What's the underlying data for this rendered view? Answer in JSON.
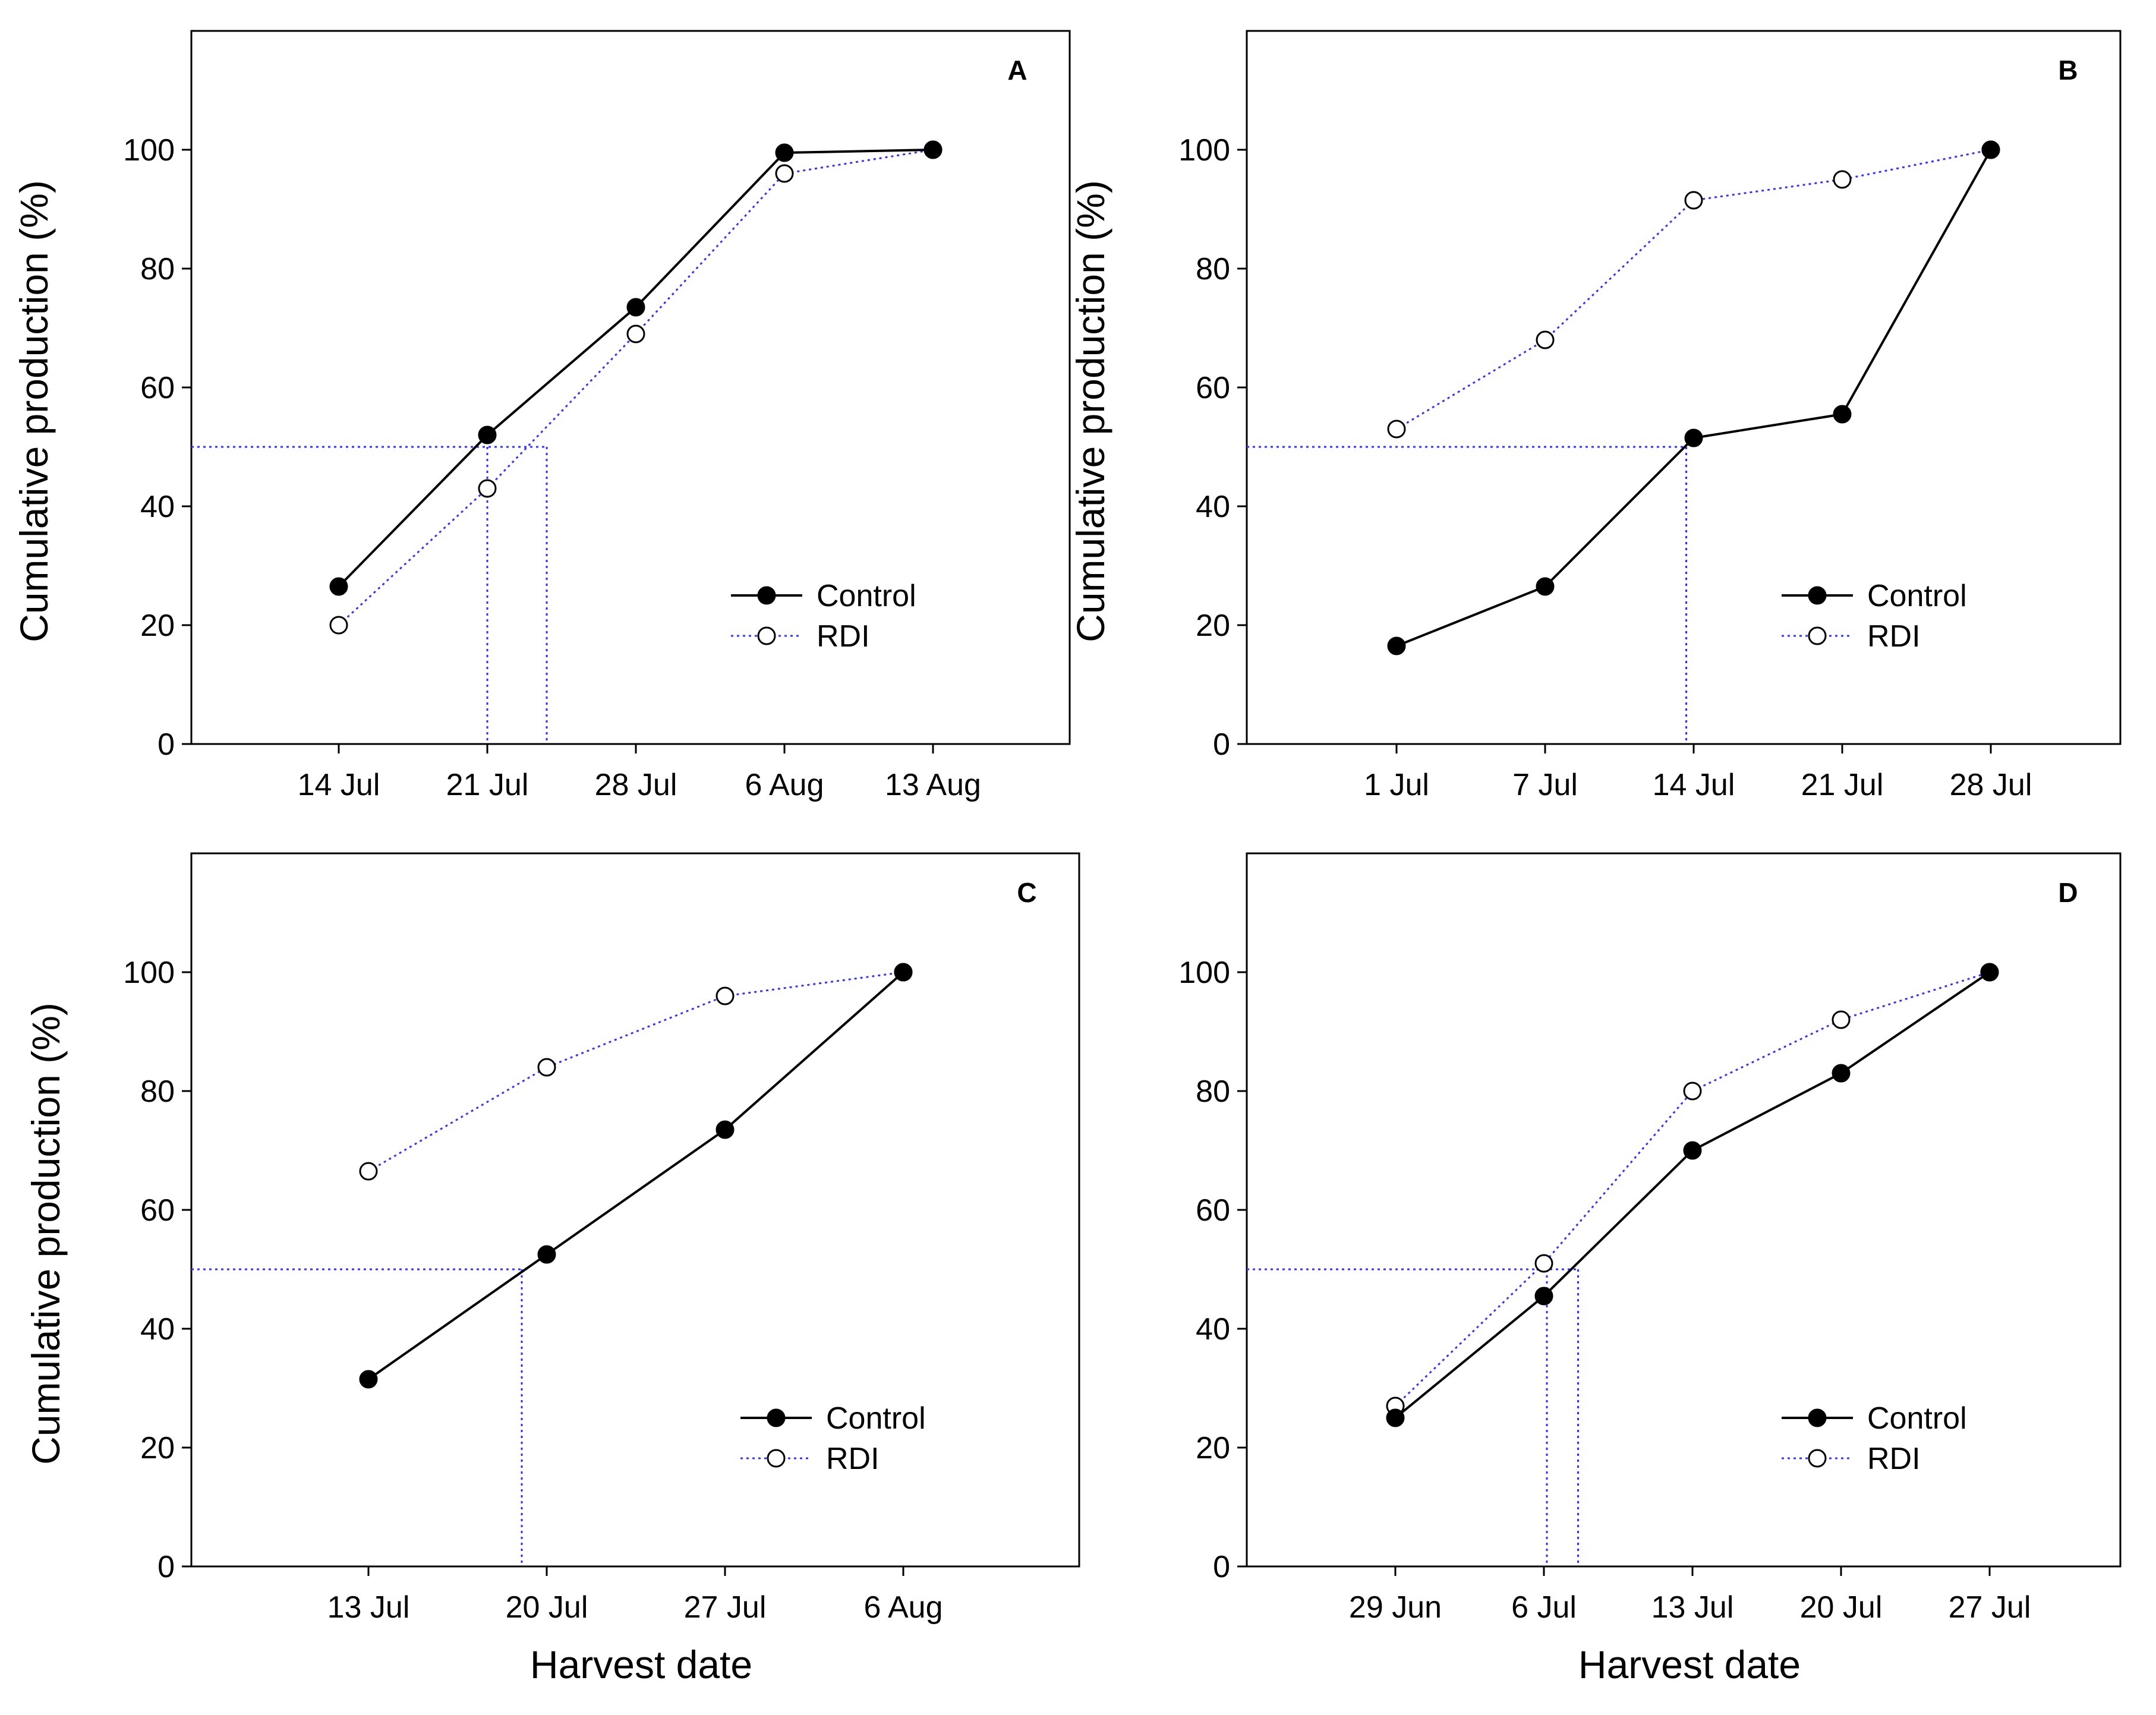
{
  "figure": {
    "reference_color": "#3333ff",
    "series_styles": [
      {
        "name": "Control",
        "marker": "filled-circle",
        "line": "solid",
        "color": "#000000"
      },
      {
        "name": "RDI",
        "marker": "open-circle",
        "line": "dotted",
        "color": "#3333ff"
      }
    ]
  },
  "chart_data": [
    {
      "type": "line",
      "panel": "A",
      "ylabel": "Cumulative production (%)",
      "xlabel": "",
      "ylim": [
        0,
        120
      ],
      "yticks": [
        0,
        20,
        40,
        60,
        80,
        100
      ],
      "categories": [
        "14 Jul",
        "21 Jul",
        "28 Jul",
        "6 Aug",
        "13 Aug"
      ],
      "series": [
        {
          "name": "Control",
          "values": [
            26.5,
            52,
            73.5,
            99.5,
            100
          ]
        },
        {
          "name": "RDI",
          "values": [
            20,
            43,
            69,
            96,
            100
          ]
        }
      ],
      "reference_y": 50,
      "reference_x": [
        1,
        1.4
      ],
      "legend_position": "bottom-right"
    },
    {
      "type": "line",
      "panel": "B",
      "ylabel": "Cumulative production (%)",
      "xlabel": "",
      "ylim": [
        0,
        120
      ],
      "yticks": [
        0,
        20,
        40,
        60,
        80,
        100
      ],
      "categories": [
        "1 Jul",
        "7 Jul",
        "14 Jul",
        "21 Jul",
        "28 Jul"
      ],
      "series": [
        {
          "name": "Control",
          "values": [
            16.5,
            26.5,
            51.5,
            55.5,
            100
          ]
        },
        {
          "name": "RDI",
          "values": [
            53,
            68,
            91.5,
            95,
            100
          ]
        }
      ],
      "reference_y": 50,
      "reference_x": [
        1.95
      ],
      "legend_position": "bottom-right"
    },
    {
      "type": "line",
      "panel": "C",
      "ylabel": "Cumulative production (%)",
      "xlabel": "Harvest date",
      "ylim": [
        0,
        120
      ],
      "yticks": [
        0,
        20,
        40,
        60,
        80,
        100
      ],
      "categories": [
        "13 Jul",
        "20 Jul",
        "27 Jul",
        "6 Aug"
      ],
      "series": [
        {
          "name": "Control",
          "values": [
            31.5,
            52.5,
            73.5,
            100
          ]
        },
        {
          "name": "RDI",
          "values": [
            66.5,
            84,
            96,
            100
          ]
        }
      ],
      "reference_y": 50,
      "reference_x": [
        0.86
      ],
      "legend_position": "bottom-right"
    },
    {
      "type": "line",
      "panel": "D",
      "ylabel": "",
      "xlabel": "Harvest date",
      "ylim": [
        0,
        120
      ],
      "yticks": [
        0,
        20,
        40,
        60,
        80,
        100
      ],
      "categories": [
        "29 Jun",
        "6 Jul",
        "13 Jul",
        "20 Jul",
        "27 Jul"
      ],
      "series": [
        {
          "name": "Control",
          "values": [
            25,
            45.5,
            70,
            83,
            100
          ]
        },
        {
          "name": "RDI",
          "values": [
            27,
            51,
            80,
            92,
            100
          ]
        }
      ],
      "reference_y": 50,
      "reference_x": [
        1.02,
        1.23
      ],
      "legend_position": "bottom-right"
    }
  ]
}
